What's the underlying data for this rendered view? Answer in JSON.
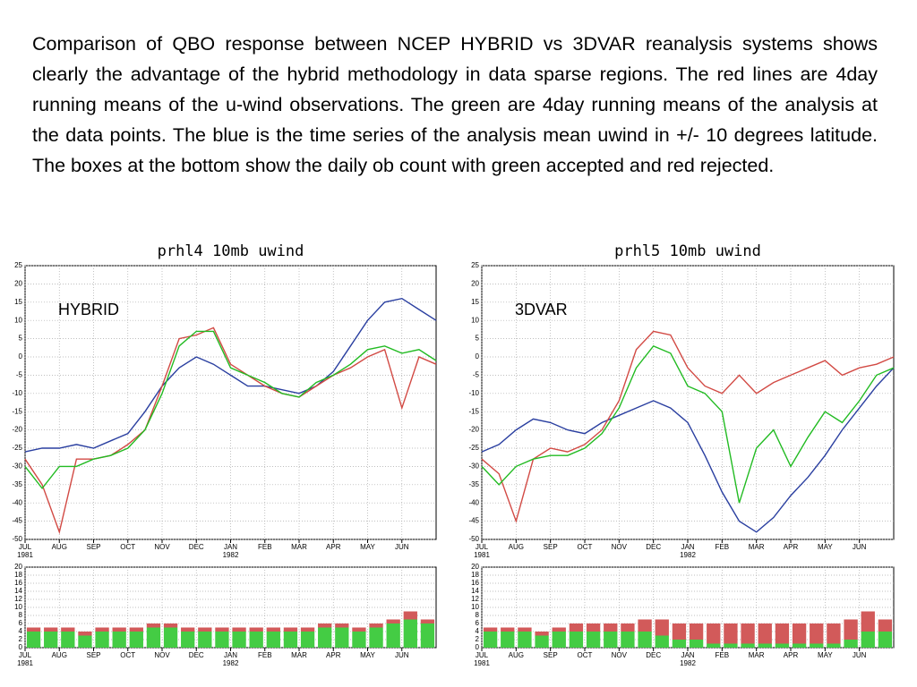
{
  "caption": "Comparison of QBO response between NCEP HYBRID vs 3DVAR reanalysis systems shows clearly the advantage of the hybrid methodology in data sparse regions. The red lines are 4day running means of the u-wind observations. The green are 4day running means of the analysis at the data points. The blue is the time series of the analysis mean uwind in +/- 10 degrees latitude.  The boxes at the bottom show the daily ob count with green accepted and red rejected.",
  "chart_data": [
    {
      "type": "line",
      "title": "prhl4 10mb uwind",
      "annotation": "HYBRID",
      "x": [
        0,
        0.5,
        1,
        1.5,
        2,
        2.5,
        3,
        3.5,
        4,
        4.5,
        5,
        5.5,
        6,
        6.5,
        7,
        7.5,
        8,
        8.5,
        9,
        9.5,
        10,
        10.5,
        11,
        11.5,
        12
      ],
      "series": [
        {
          "color": "#2a3fa0",
          "values": [
            -26,
            -25,
            -25,
            -24,
            -25,
            -23,
            -21,
            -15,
            -8,
            -3,
            0,
            -2,
            -5,
            -8,
            -8,
            -9,
            -10,
            -8,
            -4,
            3,
            10,
            15,
            16,
            13,
            10
          ]
        },
        {
          "color": "#d24a44",
          "values": [
            -28,
            -35,
            -48,
            -28,
            -28,
            -27,
            -24,
            -20,
            -8,
            5,
            6,
            8,
            -2,
            -5,
            -8,
            -10,
            -11,
            -8,
            -5,
            -3,
            0,
            2,
            -14,
            0,
            -2
          ]
        },
        {
          "color": "#22bb22",
          "values": [
            -30,
            -36,
            -30,
            -30,
            -28,
            -27,
            -25,
            -20,
            -10,
            3,
            7,
            7,
            -3,
            -5,
            -7,
            -10,
            -11,
            -7,
            -5,
            -2,
            2,
            3,
            1,
            2,
            -1
          ]
        }
      ],
      "xlim": [
        0,
        12
      ],
      "xticks": [
        {
          "value": 0,
          "label": "JUL"
        },
        {
          "value": 1,
          "label": "AUG"
        },
        {
          "value": 2,
          "label": "SEP"
        },
        {
          "value": 3,
          "label": "OCT"
        },
        {
          "value": 4,
          "label": "NOV"
        },
        {
          "value": 5,
          "label": "DEC"
        },
        {
          "value": 6,
          "label": "JAN"
        },
        {
          "value": 7,
          "label": "FEB"
        },
        {
          "value": 8,
          "label": "MAR"
        },
        {
          "value": 9,
          "label": "APR"
        },
        {
          "value": 10,
          "label": "MAY"
        },
        {
          "value": 11,
          "label": "JUN"
        }
      ],
      "year_labels": [
        {
          "value": 0,
          "label": "1981"
        },
        {
          "value": 6,
          "label": "1982"
        }
      ],
      "ylim": [
        -50,
        25
      ],
      "yticks": [
        -50,
        -45,
        -40,
        -35,
        -30,
        -25,
        -20,
        -15,
        -10,
        -5,
        0,
        5,
        10,
        15,
        20,
        25
      ],
      "grid": true
    },
    {
      "type": "line",
      "title": "prhl5 10mb uwind",
      "annotation": "3DVAR",
      "x": [
        0,
        0.5,
        1,
        1.5,
        2,
        2.5,
        3,
        3.5,
        4,
        4.5,
        5,
        5.5,
        6,
        6.5,
        7,
        7.5,
        8,
        8.5,
        9,
        9.5,
        10,
        10.5,
        11,
        11.5,
        12
      ],
      "series": [
        {
          "color": "#2a3fa0",
          "values": [
            -26,
            -24,
            -20,
            -17,
            -18,
            -20,
            -21,
            -18,
            -16,
            -14,
            -12,
            -14,
            -18,
            -27,
            -37,
            -45,
            -48,
            -44,
            -38,
            -33,
            -27,
            -20,
            -14,
            -8,
            -3
          ]
        },
        {
          "color": "#d24a44",
          "values": [
            -28,
            -32,
            -45,
            -28,
            -25,
            -26,
            -24,
            -20,
            -12,
            2,
            7,
            6,
            -3,
            -8,
            -10,
            -5,
            -10,
            -7,
            -5,
            -3,
            -1,
            -5,
            -3,
            -2,
            0
          ]
        },
        {
          "color": "#22bb22",
          "values": [
            -30,
            -35,
            -30,
            -28,
            -27,
            -27,
            -25,
            -21,
            -14,
            -3,
            3,
            1,
            -8,
            -10,
            -15,
            -40,
            -25,
            -20,
            -30,
            -22,
            -15,
            -18,
            -12,
            -5,
            -3
          ]
        }
      ],
      "xlim": [
        0,
        12
      ],
      "xticks": [
        {
          "value": 0,
          "label": "JUL"
        },
        {
          "value": 1,
          "label": "AUG"
        },
        {
          "value": 2,
          "label": "SEP"
        },
        {
          "value": 3,
          "label": "OCT"
        },
        {
          "value": 4,
          "label": "NOV"
        },
        {
          "value": 5,
          "label": "DEC"
        },
        {
          "value": 6,
          "label": "JAN"
        },
        {
          "value": 7,
          "label": "FEB"
        },
        {
          "value": 8,
          "label": "MAR"
        },
        {
          "value": 9,
          "label": "APR"
        },
        {
          "value": 10,
          "label": "MAY"
        },
        {
          "value": 11,
          "label": "JUN"
        }
      ],
      "year_labels": [
        {
          "value": 0,
          "label": "1981"
        },
        {
          "value": 6,
          "label": "1982"
        }
      ],
      "ylim": [
        -50,
        25
      ],
      "yticks": [
        -50,
        -45,
        -40,
        -35,
        -30,
        -25,
        -20,
        -15,
        -10,
        -5,
        0,
        5,
        10,
        15,
        20,
        25
      ],
      "grid": true
    },
    {
      "type": "bar",
      "stacked": true,
      "x": [
        0.25,
        0.75,
        1.25,
        1.75,
        2.25,
        2.75,
        3.25,
        3.75,
        4.25,
        4.75,
        5.25,
        5.75,
        6.25,
        6.75,
        7.25,
        7.75,
        8.25,
        8.75,
        9.25,
        9.75,
        10.25,
        10.75,
        11.25,
        11.75
      ],
      "series": [
        {
          "color": "#44cc44",
          "values": [
            4,
            4,
            4,
            3,
            4,
            4,
            4,
            5,
            5,
            4,
            4,
            4,
            4,
            4,
            4,
            4,
            4,
            5,
            5,
            4,
            5,
            6,
            7,
            6
          ]
        },
        {
          "color": "#d25a5a",
          "values": [
            1,
            1,
            1,
            1,
            1,
            1,
            1,
            1,
            1,
            1,
            1,
            1,
            1,
            1,
            1,
            1,
            1,
            1,
            1,
            1,
            1,
            1,
            2,
            1
          ]
        }
      ],
      "xlim": [
        0,
        12
      ],
      "xticks": [
        {
          "value": 0,
          "label": "JUL"
        },
        {
          "value": 1,
          "label": "AUG"
        },
        {
          "value": 2,
          "label": "SEP"
        },
        {
          "value": 3,
          "label": "OCT"
        },
        {
          "value": 4,
          "label": "NOV"
        },
        {
          "value": 5,
          "label": "DEC"
        },
        {
          "value": 6,
          "label": "JAN"
        },
        {
          "value": 7,
          "label": "FEB"
        },
        {
          "value": 8,
          "label": "MAR"
        },
        {
          "value": 9,
          "label": "APR"
        },
        {
          "value": 10,
          "label": "MAY"
        },
        {
          "value": 11,
          "label": "JUN"
        }
      ],
      "year_labels": [
        {
          "value": 0,
          "label": "1981"
        },
        {
          "value": 6,
          "label": "1982"
        }
      ],
      "ylim": [
        0,
        20
      ],
      "yticks": [
        0,
        2,
        4,
        6,
        8,
        10,
        12,
        14,
        16,
        18,
        20
      ],
      "grid": true
    },
    {
      "type": "bar",
      "stacked": true,
      "x": [
        0.25,
        0.75,
        1.25,
        1.75,
        2.25,
        2.75,
        3.25,
        3.75,
        4.25,
        4.75,
        5.25,
        5.75,
        6.25,
        6.75,
        7.25,
        7.75,
        8.25,
        8.75,
        9.25,
        9.75,
        10.25,
        10.75,
        11.25,
        11.75
      ],
      "series": [
        {
          "color": "#44cc44",
          "values": [
            4,
            4,
            4,
            3,
            4,
            4,
            4,
            4,
            4,
            4,
            3,
            2,
            2,
            1,
            1,
            1,
            1,
            1,
            1,
            1,
            1,
            2,
            4,
            4
          ]
        },
        {
          "color": "#d25a5a",
          "values": [
            1,
            1,
            1,
            1,
            1,
            2,
            2,
            2,
            2,
            3,
            4,
            4,
            4,
            5,
            5,
            5,
            5,
            5,
            5,
            5,
            5,
            5,
            5,
            3
          ]
        }
      ],
      "xlim": [
        0,
        12
      ],
      "xticks": [
        {
          "value": 0,
          "label": "JUL"
        },
        {
          "value": 1,
          "label": "AUG"
        },
        {
          "value": 2,
          "label": "SEP"
        },
        {
          "value": 3,
          "label": "OCT"
        },
        {
          "value": 4,
          "label": "NOV"
        },
        {
          "value": 5,
          "label": "DEC"
        },
        {
          "value": 6,
          "label": "JAN"
        },
        {
          "value": 7,
          "label": "FEB"
        },
        {
          "value": 8,
          "label": "MAR"
        },
        {
          "value": 9,
          "label": "APR"
        },
        {
          "value": 10,
          "label": "MAY"
        },
        {
          "value": 11,
          "label": "JUN"
        }
      ],
      "year_labels": [
        {
          "value": 0,
          "label": "1981"
        },
        {
          "value": 6,
          "label": "1982"
        }
      ],
      "ylim": [
        0,
        20
      ],
      "yticks": [
        0,
        2,
        4,
        6,
        8,
        10,
        12,
        14,
        16,
        18,
        20
      ],
      "grid": true
    }
  ]
}
